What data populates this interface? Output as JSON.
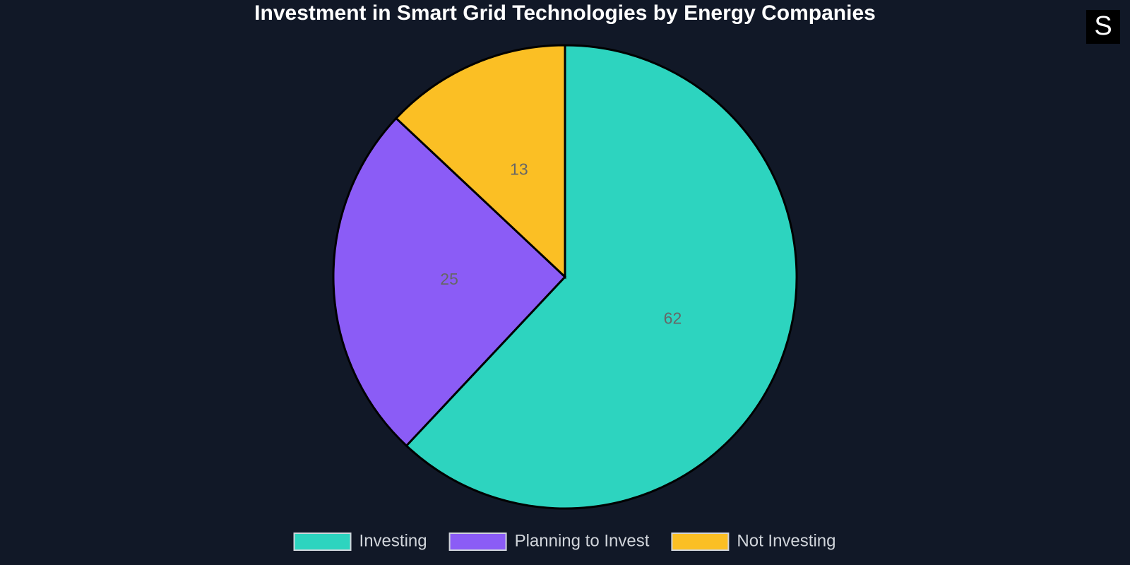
{
  "chart_data": {
    "type": "pie",
    "title": "Investment in Smart Grid Technologies by Energy Companies",
    "categories": [
      "Investing",
      "Planning to Invest",
      "Not Investing"
    ],
    "values": [
      62,
      25,
      13
    ],
    "colors": [
      "#2dd4bf",
      "#8b5cf6",
      "#fbbf24"
    ],
    "legend": "bottom"
  },
  "logo": "S"
}
